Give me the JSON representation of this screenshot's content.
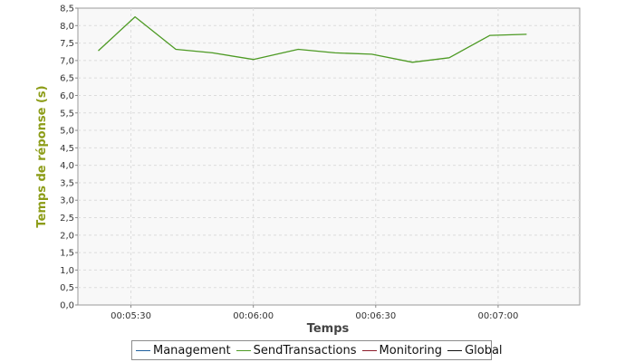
{
  "chart_data": {
    "type": "line",
    "title": "",
    "xlabel": "Temps",
    "ylabel": "Temps de réponse (s)",
    "ylim": [
      0,
      8.5
    ],
    "ytick_step": 0.5,
    "y_decimal_sep": ",",
    "xlim_seconds": [
      317,
      440
    ],
    "x_ticks": [
      {
        "value": 330,
        "label": "00:05:30"
      },
      {
        "value": 360,
        "label": "00:06:00"
      },
      {
        "value": 390,
        "label": "00:06:30"
      },
      {
        "value": 420,
        "label": "00:07:00"
      }
    ],
    "grid": true,
    "legend_position": "bottom",
    "series": [
      {
        "name": "Management",
        "color": "#1f5f9e",
        "x": [],
        "y": []
      },
      {
        "name": "SendTransactions",
        "color": "#4d9a24",
        "x": [
          322,
          331,
          341,
          350,
          360,
          371,
          380,
          389,
          399,
          408,
          418,
          427
        ],
        "y": [
          7.28,
          8.25,
          7.32,
          7.22,
          7.03,
          7.32,
          7.22,
          7.18,
          6.95,
          7.08,
          7.72,
          7.75
        ]
      },
      {
        "name": "Monitoring",
        "color": "#8c1c2b",
        "x": [],
        "y": []
      },
      {
        "name": "Global",
        "color": "#111111",
        "x": [],
        "y": []
      }
    ]
  }
}
